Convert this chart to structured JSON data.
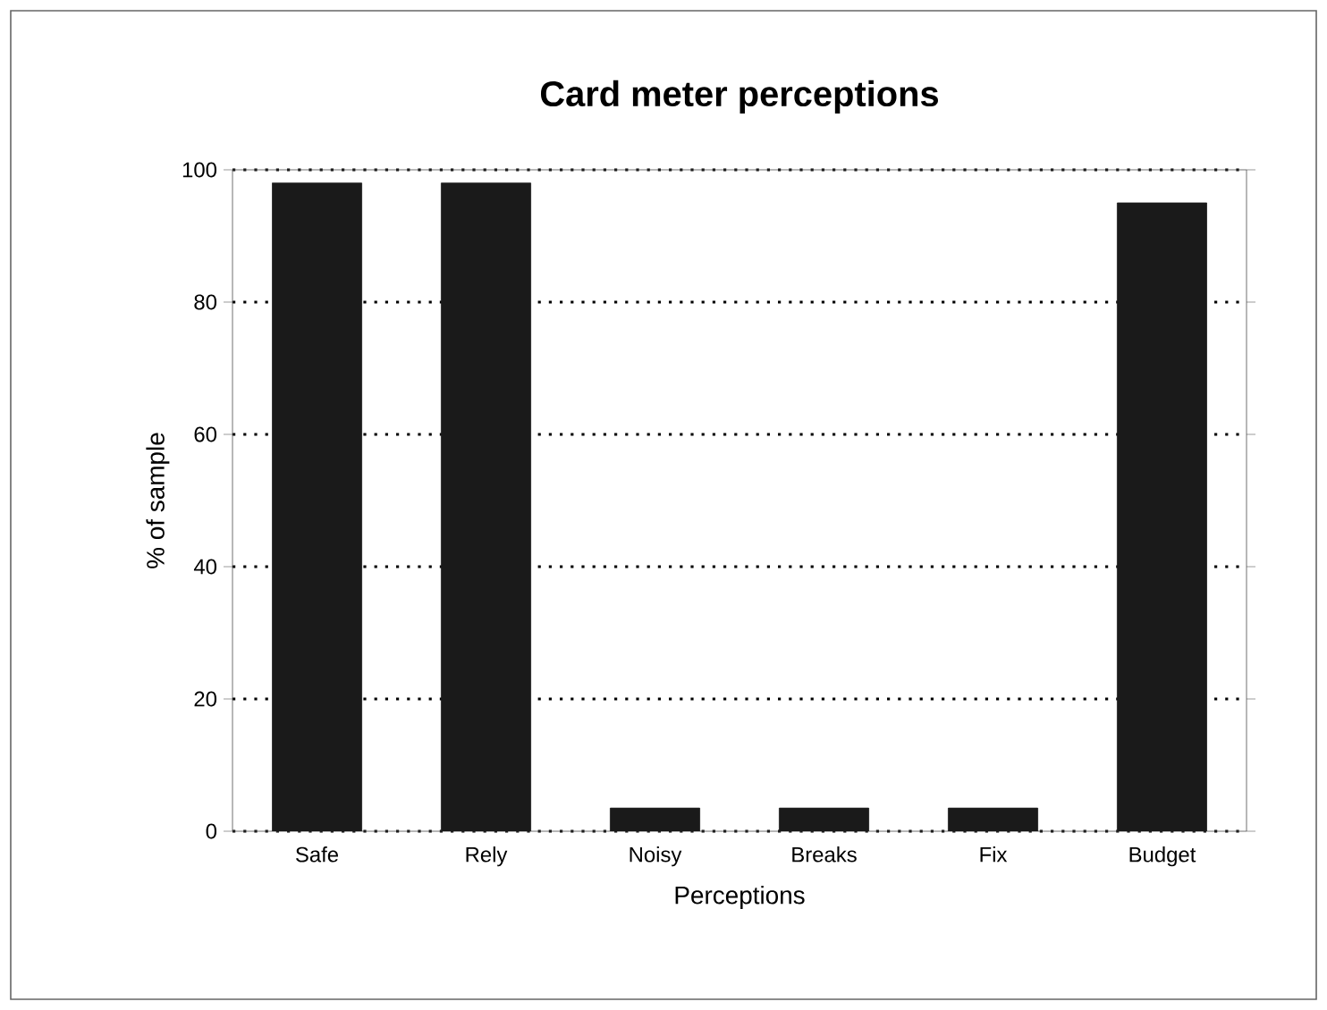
{
  "chart_data": {
    "type": "bar",
    "title": "Card meter perceptions",
    "xlabel": "Perceptions",
    "ylabel": "% of sample",
    "categories": [
      "Safe",
      "Rely",
      "Noisy",
      "Breaks",
      "Fix",
      "Budget"
    ],
    "values": [
      98,
      98,
      3.5,
      3.5,
      3.5,
      95
    ],
    "color": "#1a1a1a",
    "ylim": [
      0,
      100
    ],
    "yticks": [
      0,
      20,
      40,
      60,
      80,
      100
    ],
    "grid": "y"
  }
}
